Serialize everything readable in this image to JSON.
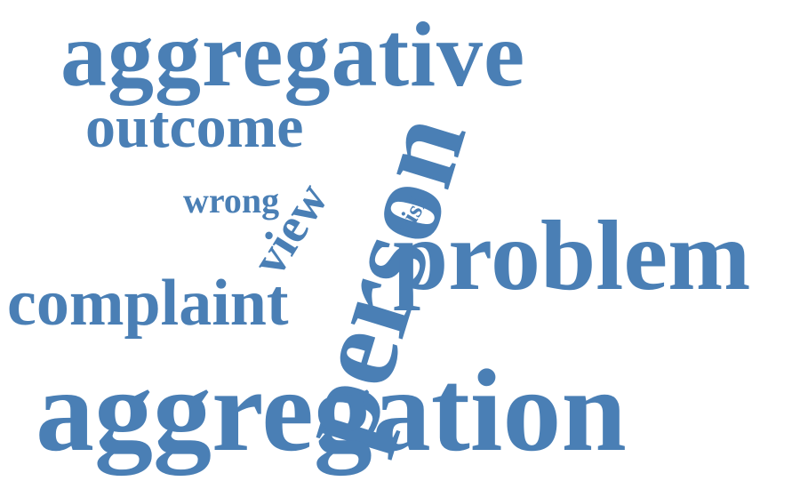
{
  "word_cloud": {
    "color": "#4a7fb5",
    "background": "#ffffff",
    "words": [
      {
        "text": "aggregative"
      },
      {
        "text": "outcome"
      },
      {
        "text": "person"
      },
      {
        "text": "view"
      },
      {
        "text": "risk"
      },
      {
        "text": "wrong"
      },
      {
        "text": "problem"
      },
      {
        "text": "complaint"
      },
      {
        "text": "aggregation"
      }
    ]
  }
}
